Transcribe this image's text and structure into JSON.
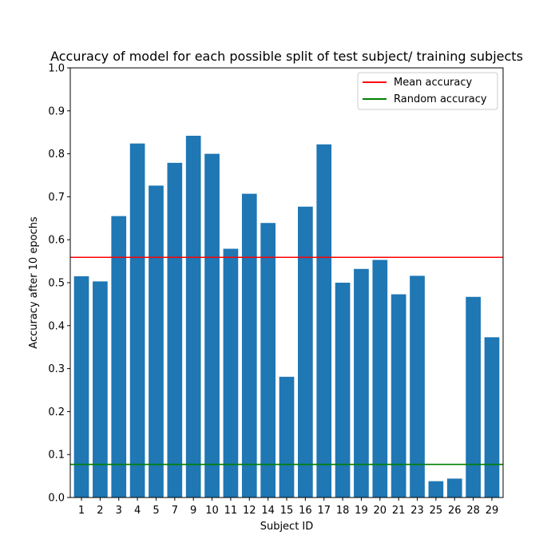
{
  "chart_data": {
    "type": "bar",
    "title": "Accuracy of model for each possible split of test subject/ training subjects",
    "xlabel": "Subject ID",
    "ylabel": "Accuracy after 10 epochs",
    "categories": [
      "1",
      "2",
      "3",
      "4",
      "5",
      "7",
      "9",
      "10",
      "11",
      "12",
      "14",
      "15",
      "16",
      "17",
      "18",
      "19",
      "20",
      "21",
      "23",
      "25",
      "26",
      "28",
      "29"
    ],
    "values": [
      0.515,
      0.503,
      0.655,
      0.824,
      0.726,
      0.779,
      0.842,
      0.8,
      0.579,
      0.707,
      0.639,
      0.281,
      0.677,
      0.822,
      0.5,
      0.532,
      0.553,
      0.473,
      0.516,
      0.038,
      0.044,
      0.467,
      0.373
    ],
    "ylim": [
      0,
      1.0
    ],
    "yticks": [
      0.0,
      0.1,
      0.2,
      0.3,
      0.4,
      0.5,
      0.6,
      0.7,
      0.8,
      0.9,
      1.0
    ],
    "ytick_labels": [
      "0.0",
      "0.1",
      "0.2",
      "0.3",
      "0.4",
      "0.5",
      "0.6",
      "0.7",
      "0.8",
      "0.9",
      "1.0"
    ],
    "bar_color": "#1f77b4",
    "grid": false,
    "reference_lines": [
      {
        "name": "Mean accuracy",
        "value": 0.559,
        "color": "#ff0000"
      },
      {
        "name": "Random accuracy",
        "value": 0.077,
        "color": "#008000"
      }
    ],
    "legend": {
      "position": "upper-right",
      "entries": [
        "Mean accuracy",
        "Random accuracy"
      ]
    }
  }
}
